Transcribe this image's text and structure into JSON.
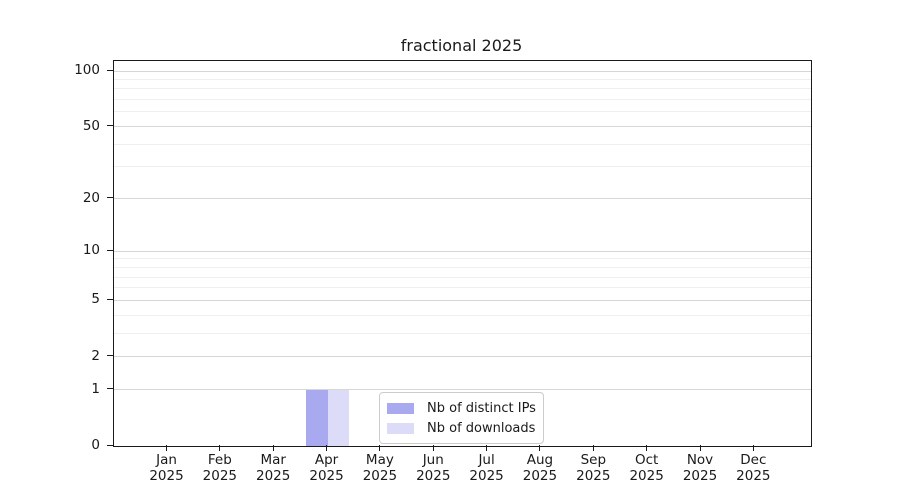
{
  "chart_data": {
    "type": "bar",
    "title": "fractional 2025",
    "categories": [
      "Jan 2025",
      "Feb 2025",
      "Mar 2025",
      "Apr 2025",
      "May 2025",
      "Jun 2025",
      "Jul 2025",
      "Aug 2025",
      "Sep 2025",
      "Oct 2025",
      "Nov 2025",
      "Dec 2025"
    ],
    "series": [
      {
        "name": "Nb of distinct IPs",
        "color": "#a9a9f0",
        "values": [
          0,
          0,
          0,
          1,
          0,
          0,
          0,
          0,
          0,
          0,
          0,
          0
        ]
      },
      {
        "name": "Nb of downloads",
        "color": "#dcdcf8",
        "values": [
          0,
          0,
          0,
          1,
          0,
          0,
          0,
          0,
          0,
          0,
          0,
          0
        ]
      }
    ],
    "xlabel": "",
    "ylabel": "",
    "y_scale": "log-like (position proportional to log10(1+y))",
    "y_ticks": [
      0,
      1,
      2,
      5,
      10,
      20,
      50,
      100
    ],
    "y_minor_gridlines": [
      3,
      4,
      6,
      7,
      8,
      9,
      30,
      40,
      60,
      70,
      80,
      90
    ],
    "ylim": [
      0,
      113
    ],
    "grid": "horizontal",
    "legend": {
      "position": "lower center",
      "entries": [
        "Nb of distinct IPs",
        "Nb of downloads"
      ]
    },
    "colors": {
      "axis": "#1a1a1a",
      "major_grid": "#d6d6d6",
      "minor_grid": "#efefef",
      "bar_distinct_ips": "#a9a9f0",
      "bar_downloads": "#dcdcf8",
      "legend_border": "#cccccc",
      "text": "#1a1a1a"
    }
  }
}
